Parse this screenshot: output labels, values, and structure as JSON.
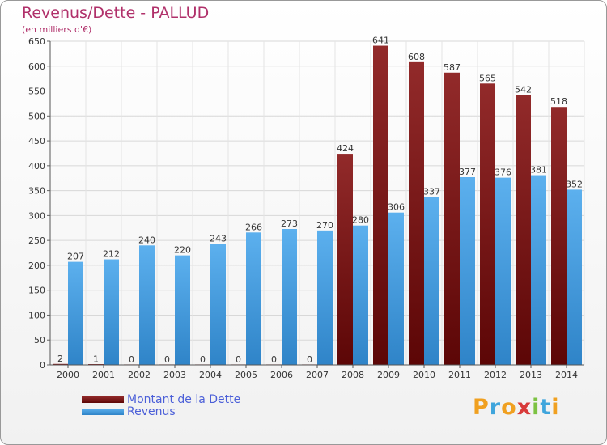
{
  "chart_data": {
    "type": "bar",
    "title": "Revenus/Dette - PALLUD",
    "subtitle": "(en milliers d'€)",
    "categories": [
      "2000",
      "2001",
      "2002",
      "2003",
      "2004",
      "2005",
      "2006",
      "2007",
      "2008",
      "2009",
      "2010",
      "2011",
      "2012",
      "2013",
      "2014"
    ],
    "series": [
      {
        "name": "Montant de la Dette",
        "color": "#7a1717",
        "values": [
          2,
          1,
          0,
          0,
          0,
          0,
          0,
          0,
          424,
          641,
          608,
          587,
          565,
          542,
          518
        ]
      },
      {
        "name": "Revenus",
        "color": "#4aa3e6",
        "values": [
          207,
          212,
          240,
          220,
          243,
          266,
          273,
          270,
          280,
          306,
          337,
          377,
          376,
          381,
          352
        ]
      }
    ],
    "ylim": [
      0,
      650
    ],
    "yticks": [
      0,
      50,
      100,
      150,
      200,
      250,
      300,
      350,
      400,
      450,
      500,
      550,
      600,
      650
    ],
    "grid": true,
    "legend": "bottom-left"
  },
  "branding": {
    "logo_letters": [
      {
        "ch": "P",
        "color": "#f0a020"
      },
      {
        "ch": "r",
        "color": "#3fa5dc"
      },
      {
        "ch": "o",
        "color": "#f0a020"
      },
      {
        "ch": "x",
        "color": "#d83a3a"
      },
      {
        "ch": "i",
        "color": "#7cc242"
      },
      {
        "ch": "t",
        "color": "#3fa5dc"
      },
      {
        "ch": "i",
        "color": "#f0a020"
      }
    ]
  }
}
